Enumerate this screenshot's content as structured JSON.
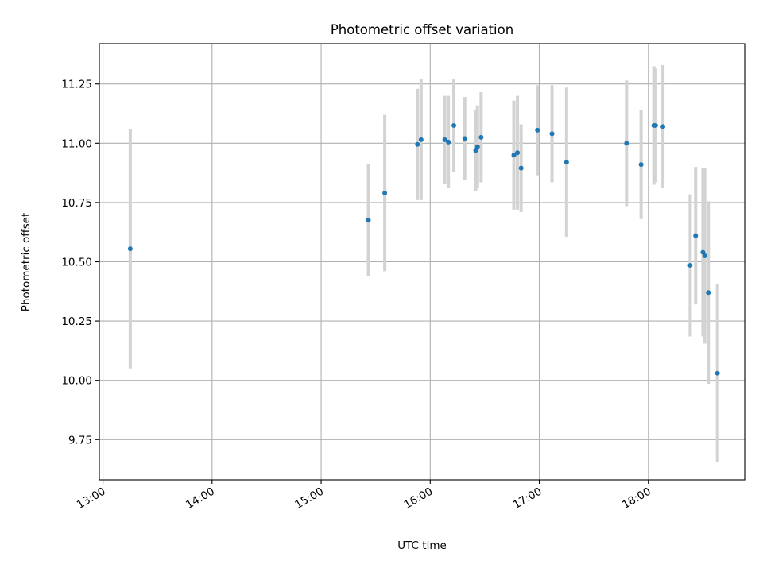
{
  "chart_data": {
    "type": "scatter",
    "title": "Photometric offset variation",
    "xlabel": "UTC time",
    "ylabel": "Photometric offset",
    "xlim": [
      "12:58",
      "18:53"
    ],
    "ylim": [
      9.58,
      11.42
    ],
    "grid": true,
    "x_ticks": [
      "13:00",
      "14:00",
      "15:00",
      "16:00",
      "17:00",
      "18:00"
    ],
    "y_ticks": [
      "9.75",
      "10.00",
      "10.25",
      "10.50",
      "10.75",
      "11.00",
      "11.25"
    ],
    "marker_color": "#1f77b4",
    "errorbar_color": "#d3d3d3",
    "points": [
      {
        "t": "13:15",
        "y": 10.555,
        "err": 0.505
      },
      {
        "t": "15:26",
        "y": 10.675,
        "err": 0.235
      },
      {
        "t": "15:35",
        "y": 10.79,
        "err": 0.33
      },
      {
        "t": "15:53",
        "y": 10.995,
        "err": 0.235
      },
      {
        "t": "15:55",
        "y": 11.015,
        "err": 0.255
      },
      {
        "t": "16:08",
        "y": 11.015,
        "err": 0.185
      },
      {
        "t": "16:10",
        "y": 11.005,
        "err": 0.195
      },
      {
        "t": "16:13",
        "y": 11.075,
        "err": 0.195
      },
      {
        "t": "16:19",
        "y": 11.02,
        "err": 0.175
      },
      {
        "t": "16:25",
        "y": 10.97,
        "err": 0.17
      },
      {
        "t": "16:26",
        "y": 10.985,
        "err": 0.175
      },
      {
        "t": "16:28",
        "y": 11.025,
        "err": 0.19
      },
      {
        "t": "16:46",
        "y": 10.95,
        "err": 0.23
      },
      {
        "t": "16:48",
        "y": 10.96,
        "err": 0.24
      },
      {
        "t": "16:50",
        "y": 10.895,
        "err": 0.185
      },
      {
        "t": "16:59",
        "y": 11.055,
        "err": 0.19
      },
      {
        "t": "17:07",
        "y": 11.04,
        "err": 0.205
      },
      {
        "t": "17:15",
        "y": 10.92,
        "err": 0.315
      },
      {
        "t": "17:48",
        "y": 11.0,
        "err": 0.265
      },
      {
        "t": "17:56",
        "y": 10.91,
        "err": 0.23
      },
      {
        "t": "18:03",
        "y": 11.075,
        "err": 0.25
      },
      {
        "t": "18:04",
        "y": 11.075,
        "err": 0.24
      },
      {
        "t": "18:08",
        "y": 11.07,
        "err": 0.26
      },
      {
        "t": "18:23",
        "y": 10.485,
        "err": 0.3
      },
      {
        "t": "18:26",
        "y": 10.61,
        "err": 0.29
      },
      {
        "t": "18:30",
        "y": 10.54,
        "err": 0.355
      },
      {
        "t": "18:31",
        "y": 10.525,
        "err": 0.37
      },
      {
        "t": "18:33",
        "y": 10.37,
        "err": 0.385
      },
      {
        "t": "18:38",
        "y": 10.03,
        "err": 0.375
      }
    ]
  }
}
